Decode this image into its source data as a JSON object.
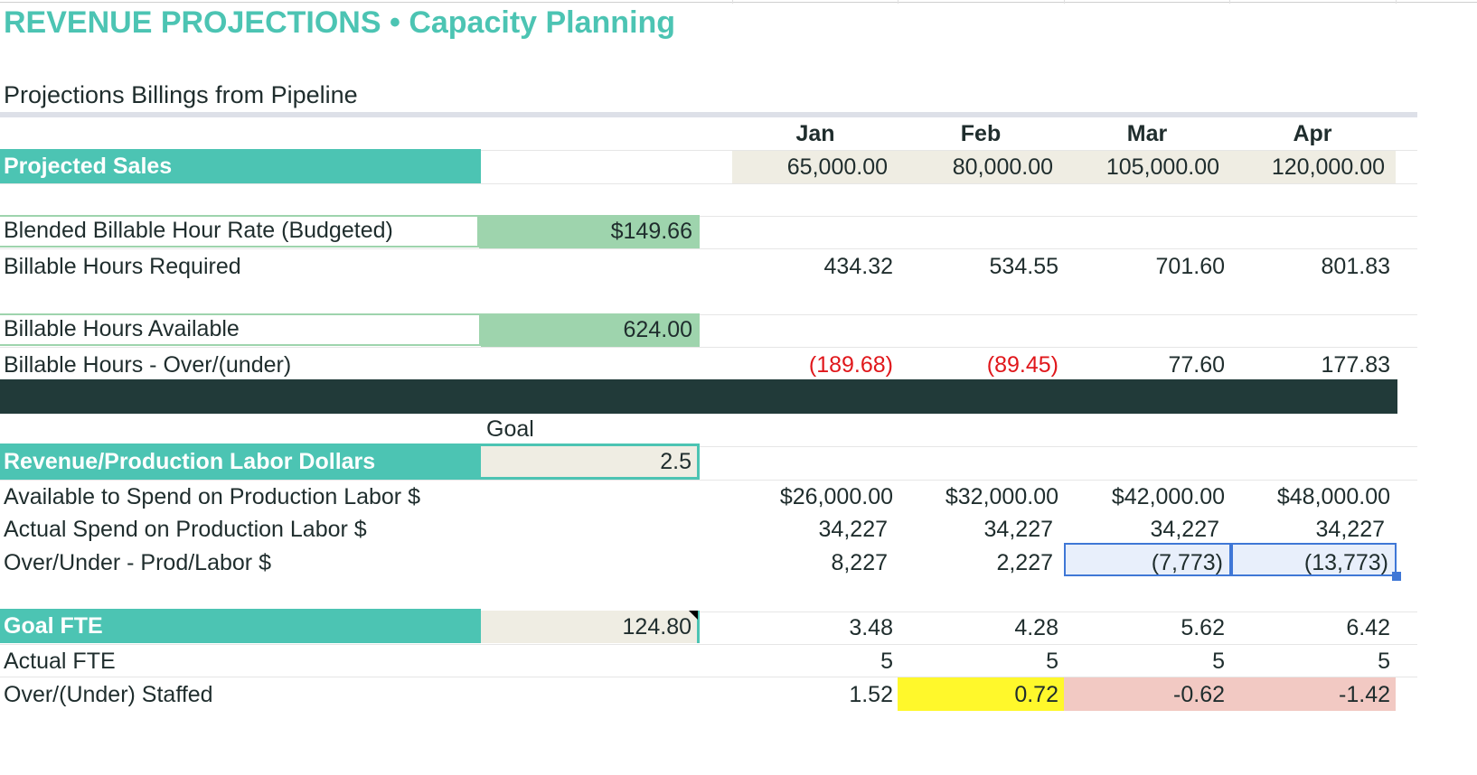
{
  "header": {
    "title": "REVENUE PROJECTIONS • Capacity Planning",
    "subtitle": "Projections Billings from Pipeline"
  },
  "months": [
    "Jan",
    "Feb",
    "Mar",
    "Apr"
  ],
  "projected_sales": {
    "label": "Projected Sales",
    "values": [
      "65,000.00",
      "80,000.00",
      "105,000.00",
      "120,000.00"
    ]
  },
  "blended_rate": {
    "label": "Blended Billable Hour Rate (Budgeted)",
    "value": "$149.66"
  },
  "hours_required": {
    "label": "Billable Hours Required",
    "values": [
      "434.32",
      "534.55",
      "701.60",
      "801.83"
    ]
  },
  "hours_available": {
    "label": "Billable Hours Available",
    "value": "624.00"
  },
  "hours_over_under": {
    "label": "Billable Hours - Over/(under)",
    "values": [
      "(189.68)",
      "(89.45)",
      "77.60",
      "177.83"
    ]
  },
  "goal_header": "Goal",
  "revenue_labor": {
    "label": "Revenue/Production Labor Dollars",
    "goal": "2.5"
  },
  "available_spend": {
    "label": "Available to Spend on Production Labor $",
    "values": [
      "$26,000.00",
      "$32,000.00",
      "$42,000.00",
      "$48,000.00"
    ]
  },
  "actual_spend": {
    "label": "Actual Spend on Production Labor $",
    "values": [
      "34,227",
      "34,227",
      "34,227",
      "34,227"
    ]
  },
  "over_under_labor": {
    "label": "Over/Under - Prod/Labor $",
    "values": [
      "8,227",
      "2,227",
      "(7,773)",
      "(13,773)"
    ]
  },
  "goal_fte": {
    "label": "Goal FTE",
    "value": "124.80",
    "values": [
      "3.48",
      "4.28",
      "5.62",
      "6.42"
    ]
  },
  "actual_fte": {
    "label": "Actual FTE",
    "values": [
      "5",
      "5",
      "5",
      "5"
    ]
  },
  "over_under_staffed": {
    "label": "Over/(Under) Staffed",
    "values": [
      "1.52",
      "0.72",
      "-0.62",
      "-1.42"
    ]
  },
  "colors": {
    "teal": "#4cc4b3",
    "green_input": "#9ed4ad",
    "beige": "#efede3",
    "dark_band": "#213a39",
    "negative_text": "#e0171b",
    "highlight_yellow": "#fff82b",
    "highlight_pink": "#f2c9c3",
    "selection_blue": "#3f77d6"
  }
}
